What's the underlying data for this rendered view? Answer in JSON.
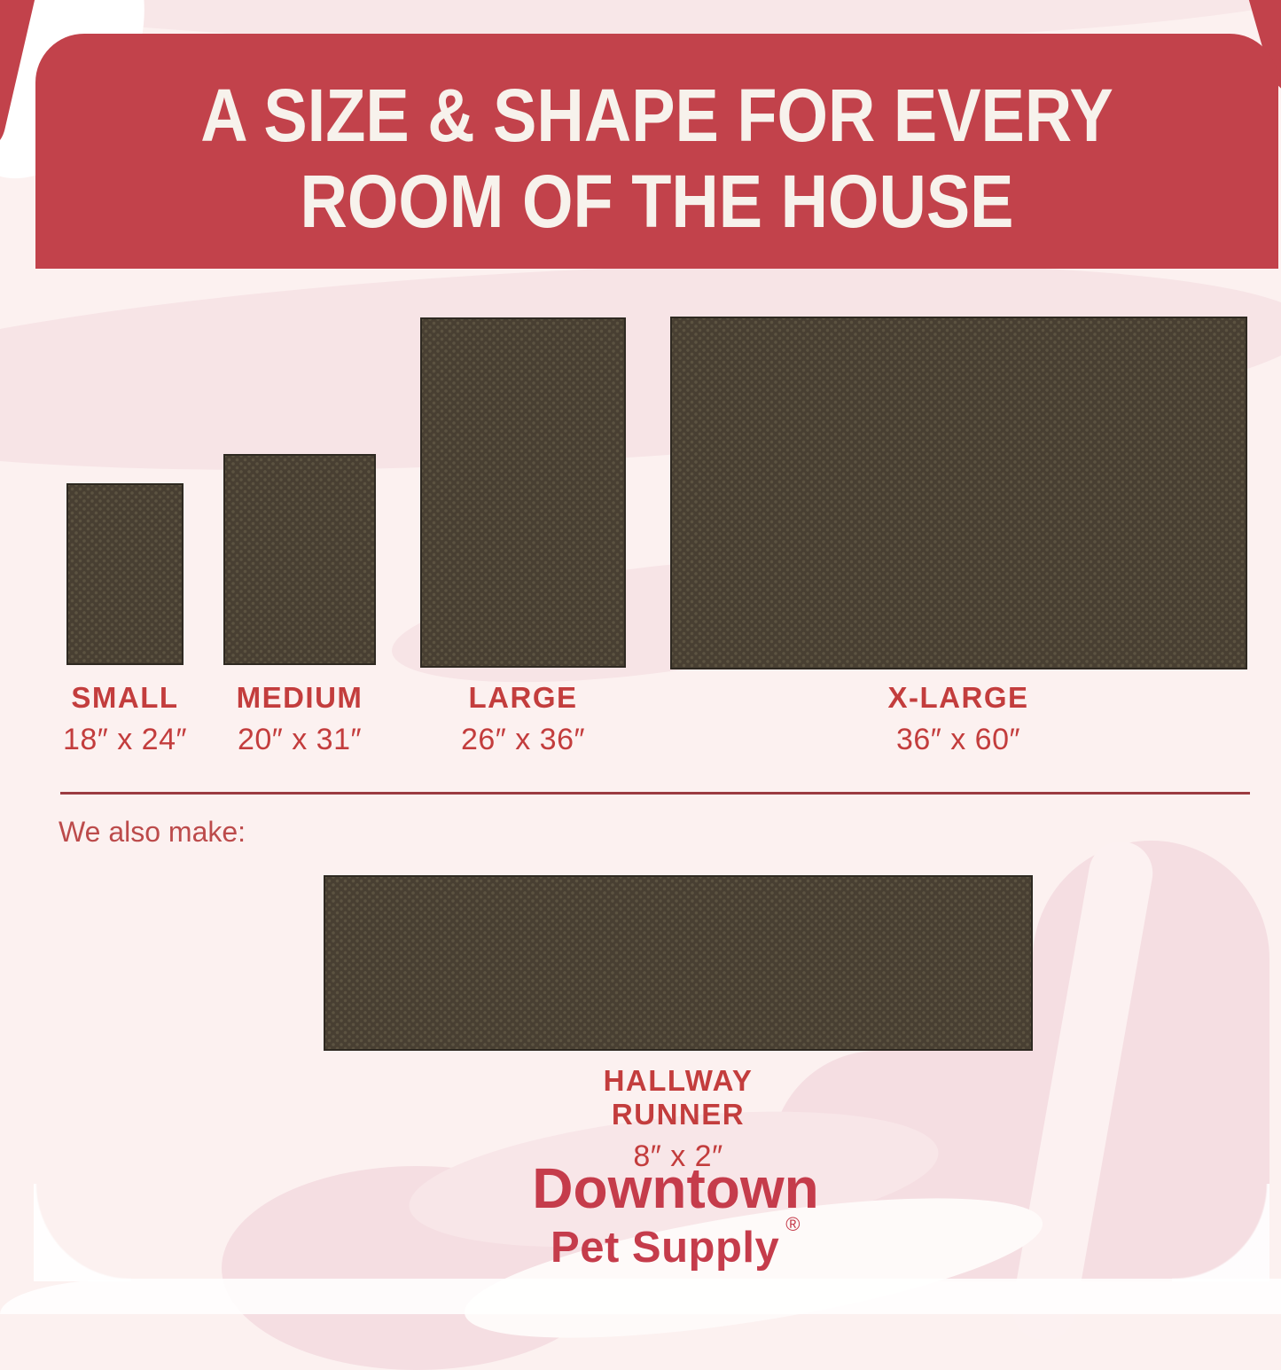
{
  "header": {
    "line1": "A SIZE & SHAPE FOR EVERY",
    "line2": "ROOM OF THE HOUSE"
  },
  "sizes": [
    {
      "name": "SMALL",
      "dimensions": "18″ x 24″"
    },
    {
      "name": "MEDIUM",
      "dimensions": "20″ x 31″"
    },
    {
      "name": "LARGE",
      "dimensions": "26″ x 36″"
    },
    {
      "name": "X-LARGE",
      "dimensions": "36″ x 60″"
    }
  ],
  "also_make": {
    "label": "We also make:"
  },
  "runner": {
    "name": "HALLWAY RUNNER",
    "dimensions": "8″ x 2″"
  },
  "brand": {
    "name": "Downtown",
    "sub": "Pet Supply",
    "registered": "®"
  },
  "colors": {
    "banner_red": "#c2424b",
    "label_red": "#c33d3d",
    "caption_red": "#bc4b4b",
    "divider_red": "#9b3c41",
    "brand_red": "#c53c4b",
    "mat_brown": "#483f32",
    "mat_dot_brown": "#5c5341",
    "background_pink": "#fcf1f0",
    "blob_pink": "#f5dee2",
    "banner_text": "#f7f2ec"
  }
}
